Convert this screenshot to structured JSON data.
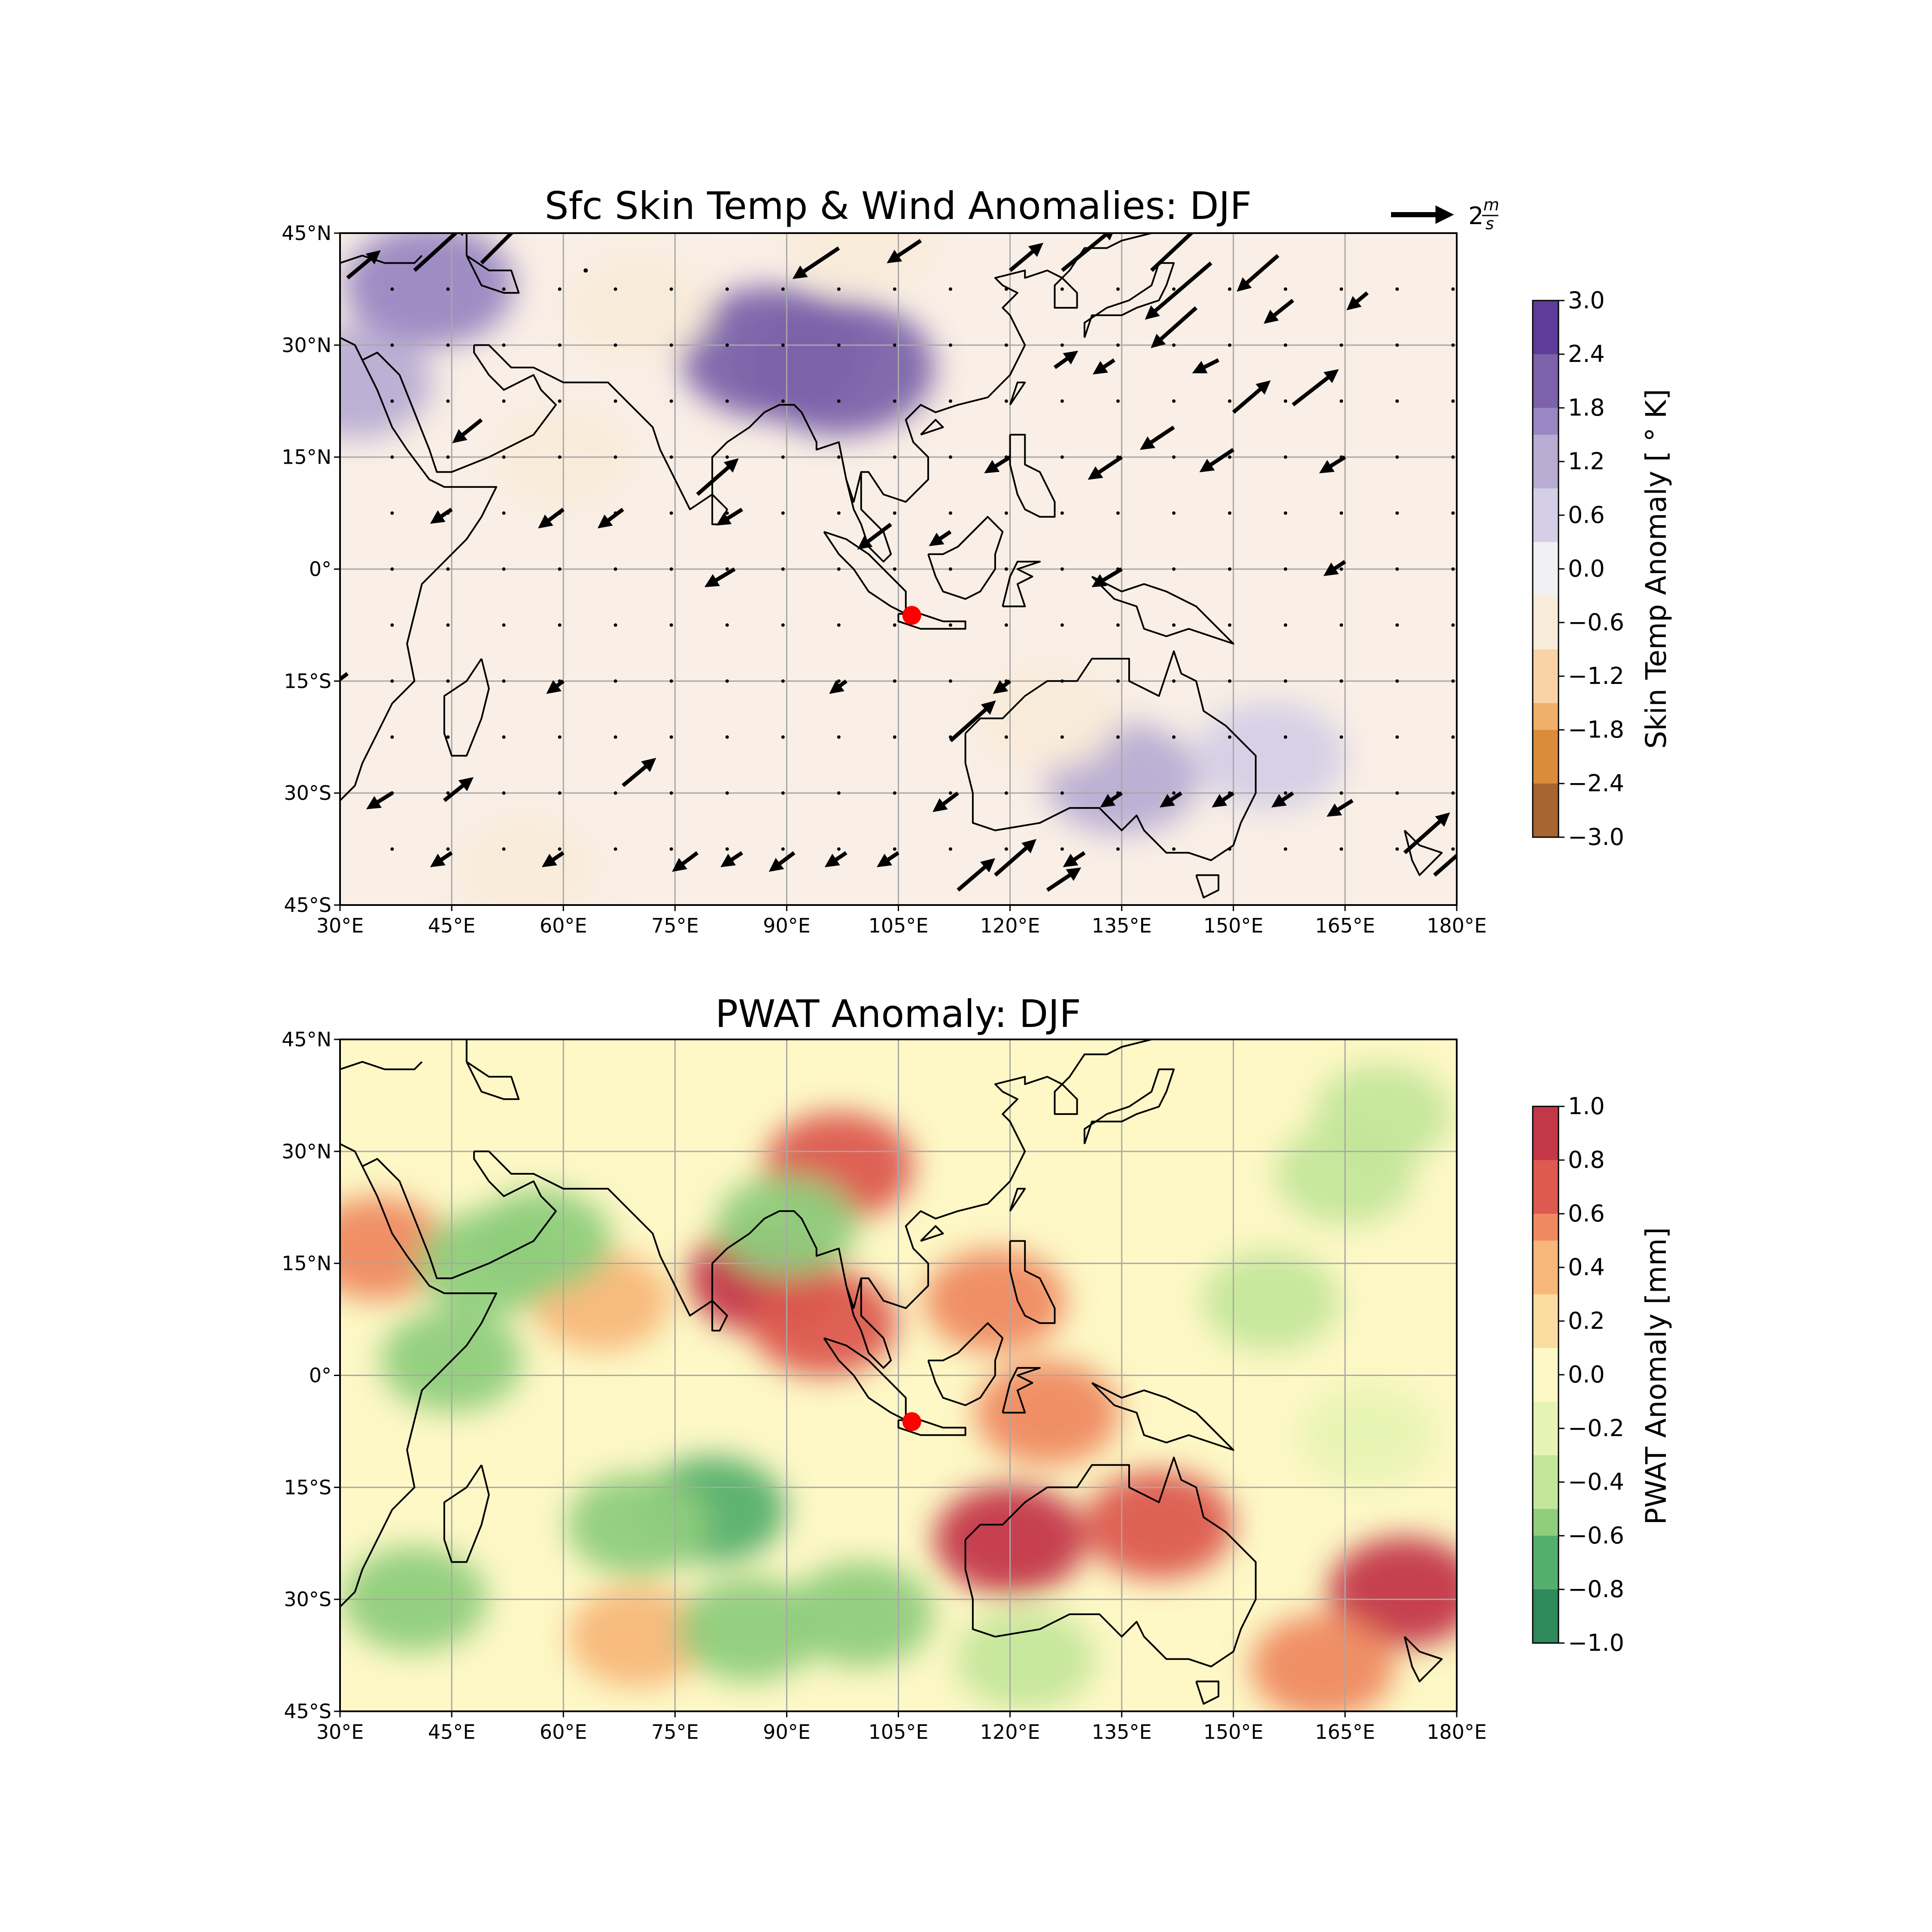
{
  "chart_data": [
    {
      "type": "contour-map",
      "title": "Sfc Skin Temp & Wind Anomalies: DJF",
      "x_ticks": [
        "30°E",
        "45°E",
        "60°E",
        "75°E",
        "90°E",
        "105°E",
        "120°E",
        "135°E",
        "150°E",
        "165°E",
        "180°E"
      ],
      "x_values": [
        30,
        45,
        60,
        75,
        90,
        105,
        120,
        135,
        150,
        165,
        180
      ],
      "y_ticks": [
        "45°N",
        "30°N",
        "15°N",
        "0°",
        "15°S",
        "30°S",
        "45°S"
      ],
      "y_values": [
        45,
        30,
        15,
        0,
        -15,
        -30,
        -45
      ],
      "xlim": [
        30,
        180
      ],
      "ylim": [
        -45,
        45
      ],
      "grid": true,
      "colorbar": {
        "label": "Skin Temp Anomaly [$^\\circ$K]",
        "label_text": "Skin Temp Anomaly [ ° K]",
        "tick_labels": [
          "3.0",
          "2.4",
          "1.8",
          "1.2",
          "0.6",
          "0.0",
          "−0.6",
          "−1.2",
          "−1.8",
          "−2.4",
          "−3.0"
        ],
        "tick_values": [
          3.0,
          2.4,
          1.8,
          1.2,
          0.6,
          0.0,
          -0.6,
          -1.2,
          -1.8,
          -2.4,
          -3.0
        ],
        "range": [
          -3.0,
          3.0
        ],
        "colors": [
          "#5e3c99",
          "#7b62aa",
          "#9a86c2",
          "#b8acd3",
          "#d4cfe6",
          "#f0f0f2",
          "#f9ebd9",
          "#f9d3a6",
          "#f1b06a",
          "#d98c3c",
          "#a9652f"
        ]
      },
      "quiver_key": {
        "label_prefix": "2",
        "label_num": "m",
        "label_den": "s",
        "magnitude": 2,
        "units": "m/s"
      },
      "marker": {
        "lon": 106.8,
        "lat": -6.2,
        "color": "#ff0000"
      },
      "anomaly_centers": [
        {
          "lon": 88,
          "lat": 29,
          "value": 2.2
        },
        {
          "lon": 97,
          "lat": 27,
          "value": 2.4
        },
        {
          "lon": 42,
          "lat": 38,
          "value": 1.6
        },
        {
          "lon": 32,
          "lat": 25,
          "value": 1.0
        },
        {
          "lon": 135,
          "lat": -28,
          "value": 1.0
        },
        {
          "lon": 155,
          "lat": -25,
          "value": 0.8
        },
        {
          "lon": 70,
          "lat": 35,
          "value": -0.7
        },
        {
          "lon": 55,
          "lat": -40,
          "value": -0.4
        },
        {
          "lon": 100,
          "lat": 44,
          "value": -0.6
        },
        {
          "lon": 125,
          "lat": -20,
          "value": -0.5
        },
        {
          "lon": 60,
          "lat": 15,
          "value": -0.3
        }
      ],
      "wind_vectors": [
        {
          "lon": 31,
          "lat": 39,
          "u": 1.2,
          "v": 1.0
        },
        {
          "lon": 40,
          "lat": 40,
          "u": 2.2,
          "v": 2.0
        },
        {
          "lon": 49,
          "lat": 41,
          "u": 2.8,
          "v": 2.8
        },
        {
          "lon": 63,
          "lat": 40,
          "u": 0.2,
          "v": 0.2
        },
        {
          "lon": 97,
          "lat": 43,
          "u": -1.8,
          "v": -1.2
        },
        {
          "lon": 108,
          "lat": 44,
          "u": -1.2,
          "v": -0.8
        },
        {
          "lon": 120,
          "lat": 40,
          "u": 1.2,
          "v": 1.0
        },
        {
          "lon": 127,
          "lat": 40,
          "u": 2.2,
          "v": 1.8
        },
        {
          "lon": 139,
          "lat": 40,
          "u": 3.2,
          "v": 3.0
        },
        {
          "lon": 147,
          "lat": 41,
          "u": -2.8,
          "v": -2.4
        },
        {
          "lon": 156,
          "lat": 42,
          "u": -1.6,
          "v": -1.4
        },
        {
          "lon": 145,
          "lat": 35,
          "u": -1.8,
          "v": -1.6
        },
        {
          "lon": 158,
          "lat": 36,
          "u": -1.0,
          "v": -0.8
        },
        {
          "lon": 168,
          "lat": 37,
          "u": -0.6,
          "v": -0.5
        },
        {
          "lon": 126,
          "lat": 27,
          "u": 0.7,
          "v": 0.5
        },
        {
          "lon": 134,
          "lat": 28,
          "u": -0.6,
          "v": -0.4
        },
        {
          "lon": 148,
          "lat": 28,
          "u": -0.8,
          "v": -0.4
        },
        {
          "lon": 150,
          "lat": 21,
          "u": 1.4,
          "v": 1.2
        },
        {
          "lon": 158,
          "lat": 22,
          "u": 1.8,
          "v": 1.4
        },
        {
          "lon": 142,
          "lat": 19,
          "u": -1.2,
          "v": -0.8
        },
        {
          "lon": 150,
          "lat": 16,
          "u": -1.2,
          "v": -0.8
        },
        {
          "lon": 135,
          "lat": 15,
          "u": -1.2,
          "v": -0.8
        },
        {
          "lon": 120,
          "lat": 15,
          "u": -0.8,
          "v": -0.5
        },
        {
          "lon": 165,
          "lat": 15,
          "u": -0.8,
          "v": -0.5
        },
        {
          "lon": 49,
          "lat": 20,
          "u": -1.0,
          "v": -0.8
        },
        {
          "lon": 78,
          "lat": 10,
          "u": 1.6,
          "v": 1.4
        },
        {
          "lon": 84,
          "lat": 8,
          "u": -0.8,
          "v": -0.5
        },
        {
          "lon": 104,
          "lat": 6,
          "u": -1.2,
          "v": -0.9
        },
        {
          "lon": 112,
          "lat": 5,
          "u": -0.6,
          "v": -0.4
        },
        {
          "lon": 60,
          "lat": 8,
          "u": -0.8,
          "v": -0.6
        },
        {
          "lon": 68,
          "lat": 8,
          "u": -0.8,
          "v": -0.6
        },
        {
          "lon": 45,
          "lat": 8,
          "u": -0.6,
          "v": -0.4
        },
        {
          "lon": 83,
          "lat": 0,
          "u": -1.0,
          "v": -0.6
        },
        {
          "lon": 135,
          "lat": 0,
          "u": -1.0,
          "v": -0.6
        },
        {
          "lon": 165,
          "lat": 1,
          "u": -0.6,
          "v": -0.4
        },
        {
          "lon": 31,
          "lat": -14,
          "u": -0.8,
          "v": -0.6
        },
        {
          "lon": 112,
          "lat": -23,
          "u": 1.8,
          "v": 1.6
        },
        {
          "lon": 113,
          "lat": -30,
          "u": -0.8,
          "v": -0.6
        },
        {
          "lon": 68,
          "lat": -29,
          "u": 1.2,
          "v": 1.0
        },
        {
          "lon": 44,
          "lat": -31,
          "u": 1.0,
          "v": 0.8
        },
        {
          "lon": 37,
          "lat": -30,
          "u": -0.8,
          "v": -0.5
        },
        {
          "lon": 118,
          "lat": -41,
          "u": 1.6,
          "v": 1.4
        },
        {
          "lon": 113,
          "lat": -43,
          "u": 1.4,
          "v": 1.2
        },
        {
          "lon": 125,
          "lat": -43,
          "u": 1.2,
          "v": 0.8
        },
        {
          "lon": 173,
          "lat": -38,
          "u": 1.8,
          "v": 1.6
        },
        {
          "lon": 166,
          "lat": -31,
          "u": -0.8,
          "v": -0.5
        },
        {
          "lon": 177,
          "lat": -41,
          "u": 1.6,
          "v": 1.4
        },
        {
          "lon": 45,
          "lat": -38,
          "u": -0.6,
          "v": -0.4
        },
        {
          "lon": 60,
          "lat": -38,
          "u": -0.6,
          "v": -0.4
        },
        {
          "lon": 78,
          "lat": -38,
          "u": -0.8,
          "v": -0.6
        },
        {
          "lon": 91,
          "lat": -38,
          "u": -0.8,
          "v": -0.6
        },
        {
          "lon": 84,
          "lat": -38,
          "u": -0.6,
          "v": -0.4
        },
        {
          "lon": 105,
          "lat": -38,
          "u": -0.6,
          "v": -0.4
        },
        {
          "lon": 98,
          "lat": -38,
          "u": -0.6,
          "v": -0.4
        },
        {
          "lon": 130,
          "lat": -38,
          "u": -0.6,
          "v": -0.4
        },
        {
          "lon": 135,
          "lat": -30,
          "u": -0.6,
          "v": -0.4
        },
        {
          "lon": 143,
          "lat": -30,
          "u": -0.6,
          "v": -0.4
        },
        {
          "lon": 150,
          "lat": -30,
          "u": -0.6,
          "v": -0.4
        },
        {
          "lon": 158,
          "lat": -30,
          "u": -0.6,
          "v": -0.4
        },
        {
          "lon": 60,
          "lat": -15,
          "u": -0.4,
          "v": -0.3
        },
        {
          "lon": 98,
          "lat": -15,
          "u": -0.4,
          "v": -0.3
        },
        {
          "lon": 120,
          "lat": -15,
          "u": -0.4,
          "v": -0.3
        }
      ]
    },
    {
      "type": "contour-map",
      "title": "PWAT Anomaly: DJF",
      "x_ticks": [
        "30°E",
        "45°E",
        "60°E",
        "75°E",
        "90°E",
        "105°E",
        "120°E",
        "135°E",
        "150°E",
        "165°E",
        "180°E"
      ],
      "x_values": [
        30,
        45,
        60,
        75,
        90,
        105,
        120,
        135,
        150,
        165,
        180
      ],
      "y_ticks": [
        "45°N",
        "30°N",
        "15°N",
        "0°",
        "15°S",
        "30°S",
        "45°S"
      ],
      "y_values": [
        45,
        30,
        15,
        0,
        -15,
        -30,
        -45
      ],
      "xlim": [
        30,
        180
      ],
      "ylim": [
        -45,
        45
      ],
      "grid": true,
      "colorbar": {
        "label": "PWAT Anomaly [mm]",
        "label_text": "PWAT Anomaly [mm]",
        "tick_labels": [
          "1.0",
          "0.8",
          "0.6",
          "0.4",
          "0.2",
          "0.0",
          "−0.2",
          "−0.4",
          "−0.6",
          "−0.8",
          "−1.0"
        ],
        "tick_values": [
          1.0,
          0.8,
          0.6,
          0.4,
          0.2,
          0.0,
          -0.2,
          -0.4,
          -0.6,
          -0.8,
          -1.0
        ],
        "range": [
          -1.0,
          1.0
        ],
        "colors": [
          "#c33749",
          "#dc5a4f",
          "#ef8961",
          "#f7b77a",
          "#fbdca0",
          "#fdf8c6",
          "#e7f3b2",
          "#c4e69a",
          "#8fce7c",
          "#55af6c",
          "#2f8a5b"
        ]
      },
      "marker": {
        "lon": 106.8,
        "lat": -6.2,
        "color": "#ff0000"
      },
      "anomaly_centers": [
        {
          "lon": 87,
          "lat": 13,
          "value": 0.9
        },
        {
          "lon": 97,
          "lat": 28,
          "value": 0.8
        },
        {
          "lon": 95,
          "lat": 7,
          "value": 0.7
        },
        {
          "lon": 120,
          "lat": -22,
          "value": 0.9
        },
        {
          "lon": 140,
          "lat": -20,
          "value": 0.8
        },
        {
          "lon": 125,
          "lat": -5,
          "value": 0.6
        },
        {
          "lon": 173,
          "lat": -29,
          "value": 0.9
        },
        {
          "lon": 118,
          "lat": 10,
          "value": 0.5
        },
        {
          "lon": 65,
          "lat": 10,
          "value": 0.4
        },
        {
          "lon": 70,
          "lat": -35,
          "value": 0.4
        },
        {
          "lon": 162,
          "lat": -39,
          "value": 0.6
        },
        {
          "lon": 35,
          "lat": 17,
          "value": 0.5
        },
        {
          "lon": 50,
          "lat": 15,
          "value": -0.6
        },
        {
          "lon": 57,
          "lat": 18,
          "value": -0.5
        },
        {
          "lon": 45,
          "lat": 2,
          "value": -0.5
        },
        {
          "lon": 40,
          "lat": -30,
          "value": -0.6
        },
        {
          "lon": 80,
          "lat": -18,
          "value": -0.7
        },
        {
          "lon": 70,
          "lat": -20,
          "value": -0.5
        },
        {
          "lon": 85,
          "lat": -34,
          "value": -0.6
        },
        {
          "lon": 100,
          "lat": -32,
          "value": -0.6
        },
        {
          "lon": 122,
          "lat": -38,
          "value": -0.4
        },
        {
          "lon": 165,
          "lat": 27,
          "value": -0.4
        },
        {
          "lon": 170,
          "lat": 35,
          "value": -0.3
        },
        {
          "lon": 168,
          "lat": -8,
          "value": -0.2
        },
        {
          "lon": 155,
          "lat": 10,
          "value": -0.3
        },
        {
          "lon": 90,
          "lat": 20,
          "value": -0.5
        }
      ]
    }
  ]
}
